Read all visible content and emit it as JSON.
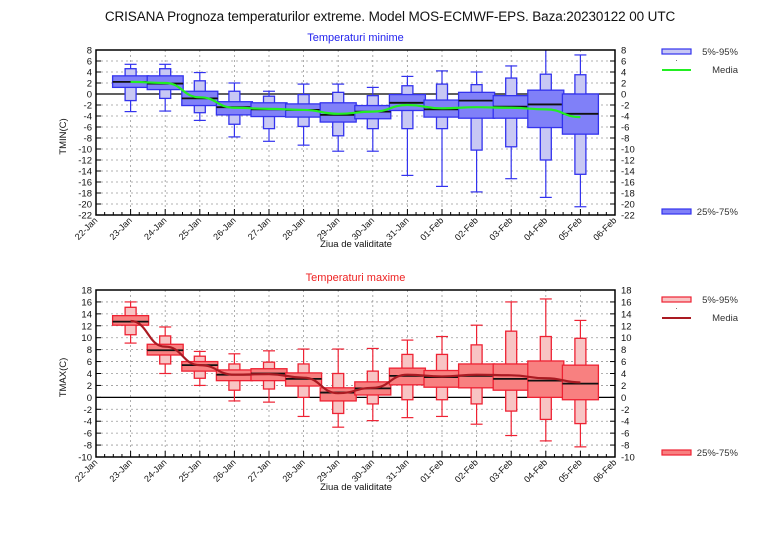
{
  "title": "CRISANA  Prognoza temperaturilor extreme.  Model MOS-ECMWF-EPS. Baza:20230122 00 UTC",
  "chart_data": [
    {
      "type": "box",
      "title": "Temperaturi minime",
      "xlabel": "Ziua de validitate",
      "ylabel": "TMIN(C)",
      "ylim": [
        -22,
        8
      ],
      "yticks": [
        8,
        6,
        4,
        2,
        0,
        -2,
        -4,
        -6,
        -8,
        -10,
        -12,
        -14,
        -16,
        -18,
        -20,
        -22
      ],
      "x_tick_labels": [
        "22-Jan",
        "23-Jan",
        "24-Jan",
        "25-Jan",
        "26-Jan",
        "27-Jan",
        "28-Jan",
        "29-Jan",
        "30-Jan",
        "31-Jan",
        "01-Feb",
        "02-Feb",
        "03-Feb",
        "04-Feb",
        "05-Feb",
        "06-Feb"
      ],
      "grid": true,
      "colors": {
        "outer": "#c8c8f4",
        "inner": "#8080f8",
        "stroke": "#3333ee",
        "mean": "#22ee22",
        "title": "#2222ee"
      },
      "legend": {
        "outer_label": "5%-95%",
        "mean_label": "Media",
        "inner_label": "25%-75%",
        "placement": "right"
      },
      "categories": [
        "23-Jan",
        "24-Jan",
        "25-Jan",
        "26-Jan",
        "27-Jan",
        "28-Jan",
        "29-Jan",
        "30-Jan",
        "31-Jan",
        "01-Feb",
        "02-Feb",
        "03-Feb",
        "04-Feb",
        "05-Feb"
      ],
      "series": [
        {
          "name": "min",
          "values": [
            -3.2,
            -3.1,
            -4.8,
            -7.8,
            -8.6,
            -9.3,
            -10.4,
            -10.4,
            -14.8,
            -16.8,
            -17.8,
            -15.4,
            -18.8,
            -20.5
          ]
        },
        {
          "name": "p5",
          "values": [
            -1.2,
            -0.8,
            -3.4,
            -5.5,
            -6.3,
            -5.9,
            -7.6,
            -6.3,
            -6.3,
            -6.3,
            -10.2,
            -9.6,
            -12.0,
            -14.6
          ]
        },
        {
          "name": "p25",
          "values": [
            1.2,
            0.8,
            -2.1,
            -3.8,
            -4.1,
            -4.2,
            -5.1,
            -4.5,
            -3.0,
            -4.2,
            -4.4,
            -4.4,
            -6.1,
            -7.3
          ]
        },
        {
          "name": "median",
          "values": [
            2.2,
            1.9,
            -0.8,
            -2.4,
            -2.8,
            -2.9,
            -3.8,
            -3.2,
            -1.6,
            -2.8,
            -1.2,
            -2.3,
            -1.9,
            -3.6
          ]
        },
        {
          "name": "p75",
          "values": [
            3.3,
            3.3,
            0.5,
            -1.4,
            -1.6,
            -1.8,
            -1.6,
            -2.1,
            -0.1,
            -1.1,
            0.3,
            -0.3,
            0.7,
            0.0
          ]
        },
        {
          "name": "p95",
          "values": [
            4.6,
            4.6,
            2.4,
            0.5,
            -0.4,
            -0.1,
            0.3,
            -0.3,
            1.5,
            1.8,
            1.7,
            2.9,
            3.6,
            3.5
          ]
        },
        {
          "name": "max",
          "values": [
            5.4,
            5.4,
            3.9,
            2.0,
            0.5,
            1.8,
            1.8,
            1.2,
            3.2,
            4.2,
            4.0,
            5.1,
            8.5,
            7.1
          ]
        },
        {
          "name": "Media",
          "values": [
            2.2,
            2.0,
            -0.6,
            -2.5,
            -2.7,
            -2.9,
            -3.6,
            -3.2,
            -2.0,
            -2.6,
            -2.4,
            -2.5,
            -2.8,
            -4.2
          ]
        }
      ]
    },
    {
      "type": "box",
      "title": "Temperaturi maxime",
      "xlabel": "Ziua de validitate",
      "ylabel": "TMAX(C)",
      "ylim": [
        -10,
        18
      ],
      "yticks": [
        18,
        16,
        14,
        12,
        10,
        8,
        6,
        4,
        2,
        0,
        -2,
        -4,
        -6,
        -8,
        -10
      ],
      "x_tick_labels": [
        "22-Jan",
        "23-Jan",
        "24-Jan",
        "25-Jan",
        "26-Jan",
        "27-Jan",
        "28-Jan",
        "29-Jan",
        "30-Jan",
        "31-Jan",
        "01-Feb",
        "02-Feb",
        "03-Feb",
        "04-Feb",
        "05-Feb",
        "06-Feb"
      ],
      "grid": true,
      "colors": {
        "outer": "#f8c4c4",
        "inner": "#f88080",
        "stroke": "#ee2233",
        "mean": "#aa1a22",
        "title": "#ee2222"
      },
      "legend": {
        "outer_label": "5%-95%",
        "mean_label": "Media",
        "inner_label": "25%-75%",
        "placement": "right"
      },
      "categories": [
        "23-Jan",
        "24-Jan",
        "25-Jan",
        "26-Jan",
        "27-Jan",
        "28-Jan",
        "29-Jan",
        "30-Jan",
        "31-Jan",
        "01-Feb",
        "02-Feb",
        "03-Feb",
        "04-Feb",
        "05-Feb"
      ],
      "series": [
        {
          "name": "min",
          "values": [
            9.1,
            4.0,
            2.0,
            -0.6,
            -0.8,
            -3.2,
            -5.0,
            -3.9,
            -3.4,
            -3.2,
            -4.5,
            -6.4,
            -7.3,
            -8.3
          ]
        },
        {
          "name": "p5",
          "values": [
            10.5,
            5.6,
            3.2,
            1.2,
            1.4,
            0.0,
            -2.7,
            -1.1,
            -0.4,
            -0.4,
            -1.1,
            -2.3,
            -3.7,
            -4.4
          ]
        },
        {
          "name": "p25",
          "values": [
            12.1,
            7.1,
            4.4,
            2.8,
            2.8,
            1.9,
            -0.6,
            0.4,
            2.1,
            1.7,
            1.6,
            1.2,
            0.0,
            -0.4
          ]
        },
        {
          "name": "median",
          "values": [
            12.7,
            7.9,
            5.4,
            3.8,
            4.0,
            3.1,
            0.8,
            1.5,
            3.6,
            3.4,
            3.6,
            3.1,
            2.8,
            2.3
          ]
        },
        {
          "name": "p75",
          "values": [
            13.7,
            8.9,
            6.0,
            4.6,
            4.8,
            4.1,
            1.6,
            2.6,
            4.9,
            4.5,
            5.6,
            5.6,
            6.1,
            5.4
          ]
        },
        {
          "name": "p95",
          "values": [
            15.1,
            10.3,
            6.9,
            5.6,
            5.9,
            5.6,
            4.0,
            4.4,
            7.2,
            7.2,
            8.8,
            11.1,
            10.2,
            9.9
          ]
        },
        {
          "name": "max",
          "values": [
            16.0,
            11.8,
            7.7,
            7.3,
            7.8,
            8.1,
            8.1,
            8.2,
            9.6,
            10.2,
            12.1,
            16.0,
            16.5,
            12.9
          ]
        },
        {
          "name": "Media",
          "values": [
            12.8,
            8.5,
            5.4,
            3.8,
            3.9,
            3.3,
            0.7,
            1.6,
            3.8,
            3.5,
            3.8,
            3.7,
            3.2,
            2.5
          ]
        }
      ]
    }
  ]
}
